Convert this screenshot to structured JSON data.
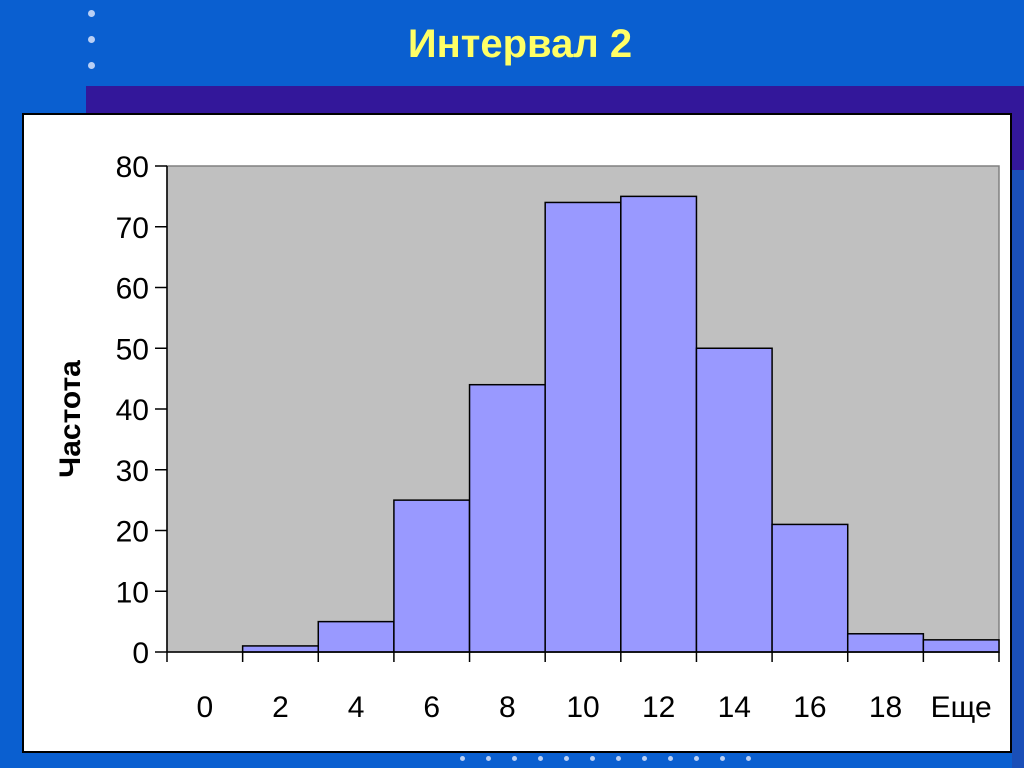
{
  "slide": {
    "title": "Интервал 2",
    "colors": {
      "background": "#0a5fd0",
      "band": "#33179a",
      "title": "#ffff66"
    }
  },
  "chart_data": {
    "type": "bar",
    "categories": [
      "0",
      "2",
      "4",
      "6",
      "8",
      "10",
      "12",
      "14",
      "16",
      "18",
      "Еще"
    ],
    "values": [
      0,
      1,
      5,
      25,
      44,
      74,
      75,
      50,
      21,
      3,
      2
    ],
    "ylabel": "Частота",
    "xlabel": "",
    "ylim": [
      0,
      80
    ],
    "yticks": [
      0,
      10,
      20,
      30,
      40,
      50,
      60,
      70,
      80
    ],
    "grid": false,
    "plot_background": "#c0c0c0",
    "bar_color": "#9999ff",
    "bar_edge": "#000000"
  }
}
